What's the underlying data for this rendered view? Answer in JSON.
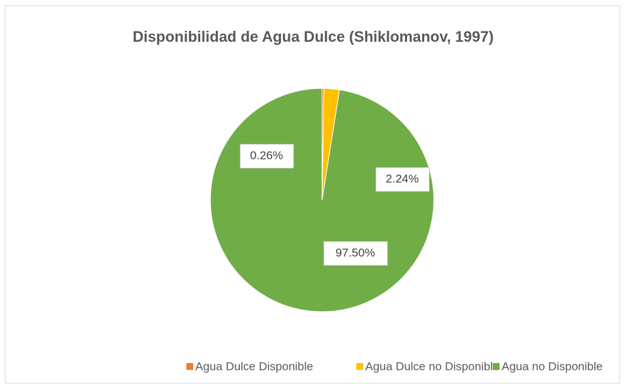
{
  "chart_data": {
    "type": "pie",
    "title": "Disponibilidad de Agua Dulce (Shiklomanov, 1997)",
    "categories": [
      "Agua Dulce Disponible",
      "Agua Dulce no Disponible",
      "Agua no Disponible"
    ],
    "values": [
      0.26,
      2.24,
      97.5
    ],
    "value_labels": [
      "0.26%",
      "2.24%",
      "97.50%"
    ],
    "colors": [
      "#ed7d31",
      "#ffc000",
      "#70ad47"
    ],
    "legend": "bottom"
  }
}
